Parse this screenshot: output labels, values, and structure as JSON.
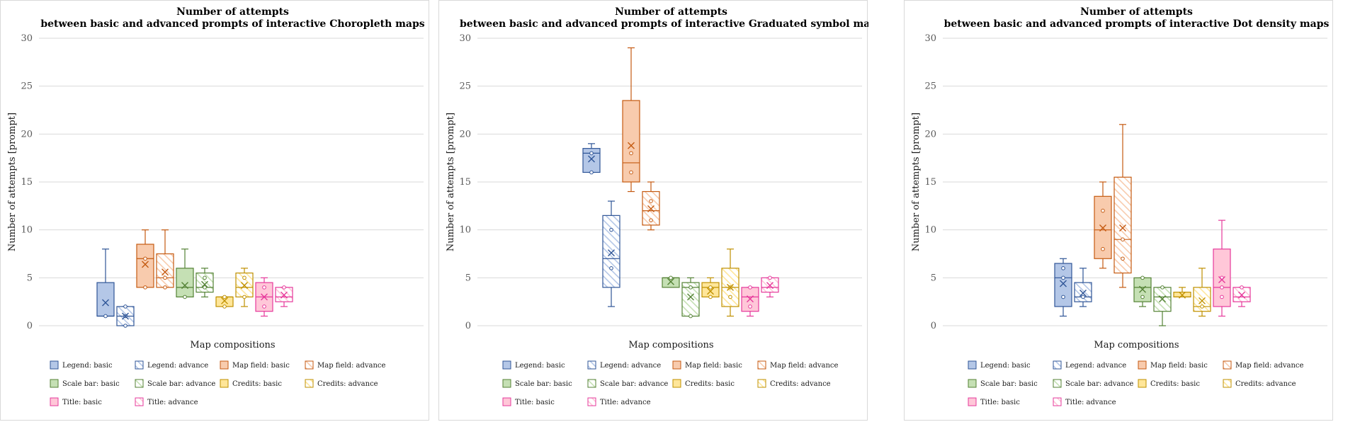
{
  "colors": {
    "legend": {
      "fill": "#b4c7e7",
      "stroke": "#2f5597"
    },
    "mapfield": {
      "fill": "#f8cbad",
      "stroke": "#c55a11"
    },
    "scalebar": {
      "fill": "#c5e0b4",
      "stroke": "#548235"
    },
    "credits": {
      "fill": "#ffe699",
      "stroke": "#bf9000"
    },
    "title": {
      "fill": "#ffc7d8",
      "stroke": "#e6399b"
    }
  },
  "chart_data": [
    {
      "type": "box",
      "title": [
        "Number of attempts",
        "between basic and advanced prompts of interactive Choropleth maps"
      ],
      "xlabel": "Map compositions",
      "ylabel": "Number of attempts [prompt]",
      "ylim": [
        0,
        30
      ],
      "yticks": [
        0,
        5,
        10,
        15,
        20,
        25,
        30
      ],
      "grid": true,
      "legend_position": "bottom",
      "series": [
        {
          "name": "Legend: basic",
          "color": "legend",
          "pattern": "solid",
          "min": 1,
          "q1": 1,
          "median": 1,
          "q3": 4.5,
          "max": 8,
          "mean": 2.4,
          "points": [
            1
          ]
        },
        {
          "name": "Legend: advance",
          "color": "legend",
          "pattern": "hatch",
          "min": 0,
          "q1": 0,
          "median": 1,
          "q3": 2,
          "max": 2,
          "mean": 1,
          "points": [
            0,
            1,
            2
          ]
        },
        {
          "name": "Map field: basic",
          "color": "mapfield",
          "pattern": "solid",
          "min": 4,
          "q1": 4,
          "median": 7,
          "q3": 8.5,
          "max": 10,
          "mean": 6.4,
          "points": [
            4,
            7
          ]
        },
        {
          "name": "Map field: advance",
          "color": "mapfield",
          "pattern": "hatch",
          "min": 4,
          "q1": 4,
          "median": 5,
          "q3": 7.5,
          "max": 10,
          "mean": 5.6,
          "points": [
            4,
            5
          ]
        },
        {
          "name": "Scale bar: basic",
          "color": "scalebar",
          "pattern": "solid",
          "min": 3,
          "q1": 3,
          "median": 4,
          "q3": 6,
          "max": 8,
          "mean": 4.2,
          "points": [
            3
          ]
        },
        {
          "name": "Scale bar: advance",
          "color": "scalebar",
          "pattern": "hatch",
          "min": 3,
          "q1": 3.5,
          "median": 4,
          "q3": 5.5,
          "max": 6,
          "mean": 4.3,
          "points": [
            4,
            5
          ]
        },
        {
          "name": "Credits: basic",
          "color": "credits",
          "pattern": "solid",
          "min": 2,
          "q1": 2,
          "median": 3,
          "q3": 3,
          "max": 3,
          "mean": 2.6,
          "points": [
            2,
            3
          ]
        },
        {
          "name": "Credits: advance",
          "color": "credits",
          "pattern": "hatch",
          "min": 2,
          "q1": 3,
          "median": 4,
          "q3": 5.5,
          "max": 6,
          "mean": 4.2,
          "points": [
            3,
            5
          ]
        },
        {
          "name": "Title: basic",
          "color": "title",
          "pattern": "solid",
          "min": 1,
          "q1": 1.5,
          "median": 3,
          "q3": 4.5,
          "max": 5,
          "mean": 3,
          "points": [
            2,
            4
          ]
        },
        {
          "name": "Title: advance",
          "color": "title",
          "pattern": "hatch",
          "min": 2,
          "q1": 2.5,
          "median": 3,
          "q3": 4,
          "max": 4,
          "mean": 3.2,
          "points": [
            4
          ]
        }
      ]
    },
    {
      "type": "box",
      "title": [
        "Number of attempts",
        "between basic and advanced prompts of interactive Graduated symbol maps"
      ],
      "xlabel": "Map compositions",
      "ylabel": "Number of attempts [prompt]",
      "ylim": [
        0,
        30
      ],
      "yticks": [
        0,
        5,
        10,
        15,
        20,
        25,
        30
      ],
      "grid": true,
      "legend_position": "bottom",
      "series": [
        {
          "name": "Legend: basic",
          "color": "legend",
          "pattern": "solid",
          "min": 16,
          "q1": 16,
          "median": 18,
          "q3": 18.5,
          "max": 19,
          "mean": 17.4,
          "points": [
            16,
            18
          ]
        },
        {
          "name": "Legend: advance",
          "color": "legend",
          "pattern": "hatch",
          "min": 2,
          "q1": 4,
          "median": 7,
          "q3": 11.5,
          "max": 13,
          "mean": 7.6,
          "points": [
            6,
            10
          ]
        },
        {
          "name": "Map field: basic",
          "color": "mapfield",
          "pattern": "solid",
          "min": 14,
          "q1": 15,
          "median": 17,
          "q3": 23.5,
          "max": 29,
          "mean": 18.8,
          "points": [
            16,
            18
          ]
        },
        {
          "name": "Map field: advance",
          "color": "mapfield",
          "pattern": "hatch",
          "min": 10,
          "q1": 10.5,
          "median": 12,
          "q3": 14,
          "max": 15,
          "mean": 12.2,
          "points": [
            11,
            13
          ]
        },
        {
          "name": "Scale bar: basic",
          "color": "scalebar",
          "pattern": "solid",
          "min": 4,
          "q1": 4,
          "median": 5,
          "q3": 5,
          "max": 5,
          "mean": 4.6,
          "points": [
            5
          ]
        },
        {
          "name": "Scale bar: advance",
          "color": "scalebar",
          "pattern": "hatch",
          "min": 1,
          "q1": 1,
          "median": 4,
          "q3": 4.5,
          "max": 5,
          "mean": 3,
          "points": [
            1,
            4
          ]
        },
        {
          "name": "Credits: basic",
          "color": "credits",
          "pattern": "solid",
          "min": 3,
          "q1": 3,
          "median": 4,
          "q3": 4.5,
          "max": 5,
          "mean": 3.6,
          "points": [
            3,
            4
          ]
        },
        {
          "name": "Credits: advance",
          "color": "credits",
          "pattern": "hatch",
          "min": 1,
          "q1": 2,
          "median": 4,
          "q3": 6,
          "max": 8,
          "mean": 4,
          "points": [
            3,
            4
          ]
        },
        {
          "name": "Title: basic",
          "color": "title",
          "pattern": "solid",
          "min": 1,
          "q1": 1.5,
          "median": 3,
          "q3": 4,
          "max": 4,
          "mean": 2.8,
          "points": [
            2,
            4
          ]
        },
        {
          "name": "Title: advance",
          "color": "title",
          "pattern": "hatch",
          "min": 3,
          "q1": 3.5,
          "median": 4,
          "q3": 5,
          "max": 5,
          "mean": 4.2,
          "points": [
            5
          ]
        }
      ]
    },
    {
      "type": "box",
      "title": [
        "Number of attempts",
        "between basic and advanced prompts of interactive Dot density maps"
      ],
      "xlabel": "Map compositions",
      "ylabel": "Number of attempts [prompt]",
      "ylim": [
        0,
        30
      ],
      "yticks": [
        0,
        5,
        10,
        15,
        20,
        25,
        30
      ],
      "grid": true,
      "legend_position": "bottom",
      "series": [
        {
          "name": "Legend: basic",
          "color": "legend",
          "pattern": "solid",
          "min": 1,
          "q1": 2,
          "median": 5,
          "q3": 6.5,
          "max": 7,
          "mean": 4.4,
          "points": [
            3,
            5,
            6
          ]
        },
        {
          "name": "Legend: advance",
          "color": "legend",
          "pattern": "hatch",
          "min": 2,
          "q1": 2.5,
          "median": 3,
          "q3": 4.5,
          "max": 6,
          "mean": 3.4,
          "points": [
            3
          ]
        },
        {
          "name": "Map field: basic",
          "color": "mapfield",
          "pattern": "solid",
          "min": 6,
          "q1": 7,
          "median": 10,
          "q3": 13.5,
          "max": 15,
          "mean": 10.2,
          "points": [
            8,
            12
          ]
        },
        {
          "name": "Map field: advance",
          "color": "mapfield",
          "pattern": "hatch",
          "min": 4,
          "q1": 5.5,
          "median": 9,
          "q3": 15.5,
          "max": 21,
          "mean": 10.2,
          "points": [
            7,
            9
          ]
        },
        {
          "name": "Scale bar: basic",
          "color": "scalebar",
          "pattern": "solid",
          "min": 2,
          "q1": 2.5,
          "median": 4,
          "q3": 5,
          "max": 5,
          "mean": 3.8,
          "points": [
            3,
            5
          ]
        },
        {
          "name": "Scale bar: advance",
          "color": "scalebar",
          "pattern": "hatch",
          "min": 0,
          "q1": 1.5,
          "median": 3,
          "q3": 4,
          "max": 4,
          "mean": 2.8,
          "points": [
            4
          ]
        },
        {
          "name": "Credits: basic",
          "color": "credits",
          "pattern": "solid",
          "min": 3,
          "q1": 3,
          "median": 3,
          "q3": 3.5,
          "max": 4,
          "mean": 3.2,
          "points": []
        },
        {
          "name": "Credits: advance",
          "color": "credits",
          "pattern": "hatch",
          "min": 1,
          "q1": 1.5,
          "median": 2,
          "q3": 4,
          "max": 6,
          "mean": 2.6,
          "points": [
            2
          ]
        },
        {
          "name": "Title: basic",
          "color": "title",
          "pattern": "solid",
          "min": 1,
          "q1": 2,
          "median": 4,
          "q3": 8,
          "max": 11,
          "mean": 4.8,
          "points": [
            3,
            4,
            5
          ]
        },
        {
          "name": "Title: advance",
          "color": "title",
          "pattern": "hatch",
          "min": 2,
          "q1": 2.5,
          "median": 3,
          "q3": 4,
          "max": 4,
          "mean": 3.2,
          "points": [
            4
          ]
        }
      ]
    }
  ]
}
